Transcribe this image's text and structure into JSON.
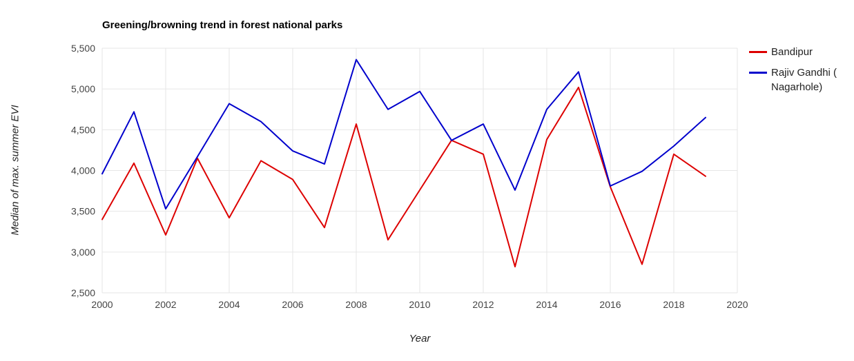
{
  "chart_data": {
    "type": "line",
    "title": "Greening/browning trend in forest national parks",
    "xlabel": "Year",
    "ylabel": "Median of max. summer EVI",
    "grid": true,
    "legend_position": "right",
    "xlim": [
      2000,
      2020
    ],
    "ylim": [
      2500,
      5500
    ],
    "x_ticks": [
      2000,
      2002,
      2004,
      2006,
      2008,
      2010,
      2012,
      2014,
      2016,
      2018,
      2020
    ],
    "y_ticks": [
      2500,
      3000,
      3500,
      4000,
      4500,
      5000,
      5500
    ],
    "y_tick_labels": [
      "2,500",
      "3,000",
      "3,500",
      "4,000",
      "4,500",
      "5,000",
      "5,500"
    ],
    "x": [
      2000,
      2001,
      2002,
      2003,
      2004,
      2005,
      2006,
      2007,
      2008,
      2009,
      2010,
      2011,
      2012,
      2013,
      2014,
      2015,
      2016,
      2017,
      2018,
      2019
    ],
    "series": [
      {
        "name": "Bandipur",
        "color": "#dd0000",
        "values": [
          3400,
          4090,
          3210,
          4150,
          3420,
          4120,
          3890,
          3300,
          4570,
          3150,
          3760,
          4370,
          4200,
          2820,
          4380,
          5020,
          3800,
          2850,
          4200,
          3930
        ]
      },
      {
        "name": "Rajiv Gandhi ( Nagarhole)",
        "color": "#0000cc",
        "values": [
          3960,
          4720,
          3530,
          4170,
          4820,
          4600,
          4240,
          4080,
          5360,
          4750,
          4970,
          4370,
          4570,
          3760,
          4750,
          5210,
          3810,
          3990,
          4300,
          4650
        ]
      }
    ]
  },
  "legend": {
    "items": [
      {
        "label": "Bandipur"
      },
      {
        "label": "Rajiv Gandhi ( Nagarhole)"
      }
    ]
  },
  "style": {
    "gridline_color": "#e6e6e6",
    "tick_label_color": "#444444"
  }
}
